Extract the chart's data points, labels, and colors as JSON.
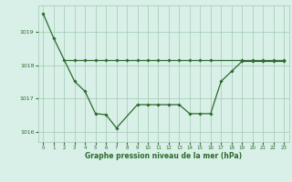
{
  "line1_x": [
    0,
    1,
    3,
    4,
    5,
    6,
    7,
    9,
    10,
    11,
    12,
    13,
    14,
    15,
    16,
    17,
    18,
    19,
    20,
    21,
    22,
    23
  ],
  "line1_y": [
    1019.55,
    1018.82,
    1017.52,
    1017.22,
    1016.55,
    1016.52,
    1016.12,
    1016.82,
    1016.82,
    1016.82,
    1016.82,
    1016.82,
    1016.55,
    1016.55,
    1016.55,
    1017.52,
    1017.82,
    1018.12,
    1018.12,
    1018.12,
    1018.12,
    1018.12
  ],
  "line2_x": [
    2,
    3,
    4,
    5,
    6,
    7,
    8,
    9,
    10,
    11,
    12,
    13,
    14,
    15,
    16,
    19,
    20,
    21,
    22,
    23
  ],
  "line2_y": [
    1018.15,
    1018.15,
    1018.15,
    1018.15,
    1018.15,
    1018.15,
    1018.15,
    1018.15,
    1018.15,
    1018.15,
    1018.15,
    1018.15,
    1018.15,
    1018.15,
    1018.15,
    1018.15,
    1018.15,
    1018.15,
    1018.15,
    1018.15
  ],
  "color": "#2d6a2d",
  "bg_color": "#d8f0e8",
  "grid_color": "#a0c8b0",
  "xlabel": "Graphe pression niveau de la mer (hPa)",
  "xlim": [
    -0.5,
    23.5
  ],
  "ylim": [
    1015.7,
    1019.8
  ],
  "yticks": [
    1016,
    1017,
    1018,
    1019
  ],
  "xticks": [
    0,
    1,
    2,
    3,
    4,
    5,
    6,
    7,
    8,
    9,
    10,
    11,
    12,
    13,
    14,
    15,
    16,
    17,
    18,
    19,
    20,
    21,
    22,
    23
  ],
  "marker": "D",
  "markersize": 1.8,
  "linewidth": 0.9
}
